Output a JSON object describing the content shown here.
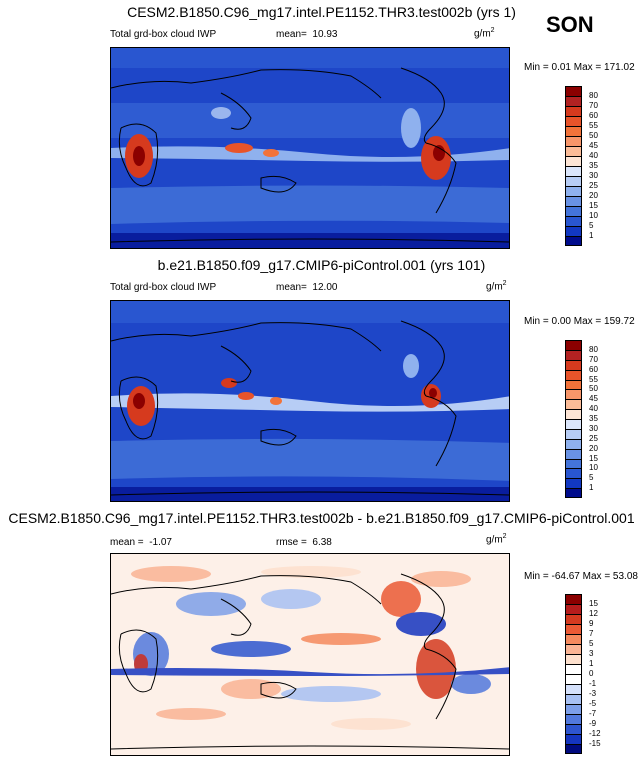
{
  "season": "SON",
  "units_base": "g/m",
  "units_exp": "2",
  "panels": [
    {
      "title": "CESM2.B1850.C96_mg17.intel.PE1152.THR3.test002b (yrs 1)",
      "variable": "Total grd-box cloud IWP",
      "mean_label": "mean=",
      "mean_value": "10.93",
      "minmax": "Min =   0.01 Max = 171.02",
      "colorbar_labels": [
        "80",
        "70",
        "60",
        "55",
        "50",
        "45",
        "40",
        "35",
        "30",
        "25",
        "20",
        "15",
        "10",
        "5",
        "1"
      ]
    },
    {
      "title": "b.e21.B1850.f09_g17.CMIP6-piControl.001 (yrs 101)",
      "variable": "Total grd-box cloud IWP",
      "mean_label": "mean=",
      "mean_value": "12.00",
      "minmax": "Min =   0.00 Max = 159.72",
      "colorbar_labels": [
        "80",
        "70",
        "60",
        "55",
        "50",
        "45",
        "40",
        "35",
        "30",
        "25",
        "20",
        "15",
        "10",
        "5",
        "1"
      ]
    },
    {
      "title": "CESM2.B1850.C96_mg17.intel.PE1152.THR3.test002b - b.e21.B1850.f09_g17.CMIP6-piControl.001",
      "mean_label": "mean =",
      "mean_value": "-1.07",
      "rmse_label": "rmse =",
      "rmse_value": "6.38",
      "minmax": "Min = -64.67 Max =  53.08",
      "colorbar_labels": [
        "15",
        "12",
        "9",
        "7",
        "5",
        "3",
        "1",
        "0",
        "-1",
        "-3",
        "-5",
        "-7",
        "-9",
        "-12",
        "-15"
      ]
    }
  ],
  "colors": {
    "abs_scale": [
      "#8b0000",
      "#b22222",
      "#d63a1e",
      "#e8542a",
      "#f2733a",
      "#f7966a",
      "#fbbc98",
      "#fde5d5",
      "#dbe6fb",
      "#b7cdf5",
      "#8fb1ee",
      "#6992e4",
      "#4474da",
      "#2956d0",
      "#1238c2",
      "#000c8c"
    ],
    "diff_scale": [
      "#8b0000",
      "#b51c1c",
      "#d43a20",
      "#eb5a35",
      "#f58a5e",
      "#fab494",
      "#fde0cd",
      "#ffffff",
      "#ffffff",
      "#d5e1fb",
      "#a8c1f3",
      "#7d9fe9",
      "#5279dd",
      "#2e55cf",
      "#1535bf",
      "#000a7e"
    ],
    "land": "#000000"
  }
}
